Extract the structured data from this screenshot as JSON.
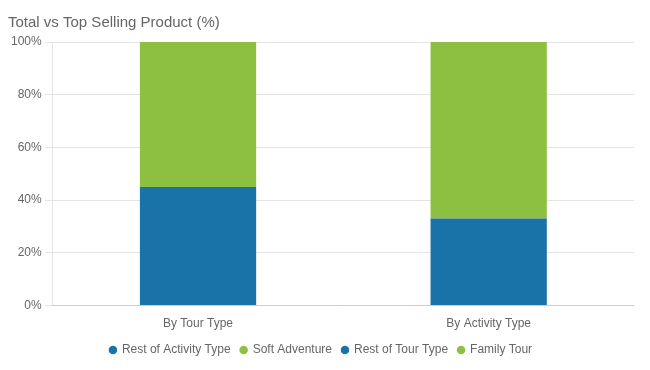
{
  "chart_data": {
    "type": "bar",
    "title": "Total vs Top Selling Product (%)",
    "categories": [
      "By Tour Type",
      "By Activity Type"
    ],
    "series": [
      {
        "name": "Rest of Activity Type",
        "color": "#1A73A8",
        "values": [
          null,
          33
        ]
      },
      {
        "name": "Soft Adventure",
        "color": "#8DC040",
        "values": [
          null,
          67
        ]
      },
      {
        "name": "Rest of Tour Type",
        "color": "#1A73A8",
        "values": [
          45,
          null
        ]
      },
      {
        "name": "Family Tour",
        "color": "#8DC040",
        "values": [
          55,
          null
        ]
      }
    ],
    "stacked": true,
    "ylim": [
      0,
      100
    ],
    "yticks": [
      {
        "value": 0,
        "label": "0%"
      },
      {
        "value": 20,
        "label": "20%"
      },
      {
        "value": 40,
        "label": "40%"
      },
      {
        "value": 60,
        "label": "60%"
      },
      {
        "value": 80,
        "label": "80%"
      },
      {
        "value": 100,
        "label": "100%"
      }
    ],
    "grid": true,
    "legend": "bottom"
  }
}
